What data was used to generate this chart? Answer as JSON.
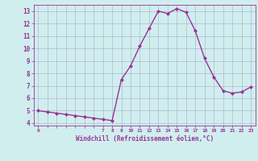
{
  "x": [
    0,
    1,
    2,
    3,
    4,
    5,
    6,
    7,
    8,
    9,
    10,
    11,
    12,
    13,
    14,
    15,
    16,
    17,
    18,
    19,
    20,
    21,
    22,
    23
  ],
  "y": [
    5.0,
    4.9,
    4.8,
    4.7,
    4.6,
    4.5,
    4.4,
    4.3,
    4.2,
    7.5,
    8.6,
    10.2,
    11.6,
    13.0,
    12.8,
    13.2,
    12.9,
    11.4,
    9.2,
    7.7,
    6.6,
    6.4,
    6.5,
    6.9
  ],
  "line_color": "#993399",
  "marker": "D",
  "marker_size": 2,
  "bg_color": "#d0eeee",
  "grid_color": "#aaaacc",
  "xlabel": "Windchill (Refroidissement éolien,°C)",
  "xlabel_color": "#993399",
  "tick_color": "#993399",
  "xlim": [
    -0.5,
    23.5
  ],
  "ylim": [
    3.8,
    13.5
  ],
  "yticks": [
    4,
    5,
    6,
    7,
    8,
    9,
    10,
    11,
    12,
    13
  ],
  "line_width": 1.0
}
